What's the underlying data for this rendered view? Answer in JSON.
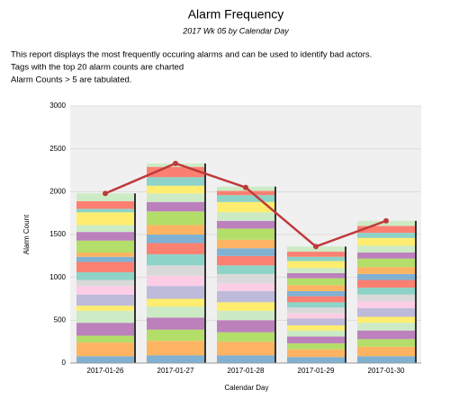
{
  "chart_data": {
    "type": "bar",
    "stacked": true,
    "title": "Alarm Frequency",
    "subtitle": "2017 Wk 05 by Calendar Day",
    "description": [
      "This report displays the most frequently occuring alarms and can be used to identify bad actors.",
      "Tags with the top 20 alarm counts are charted",
      "Alarm Counts > 5 are tabulated."
    ],
    "x_label": "Calendar Day",
    "y_label": "Alarm Count",
    "categories": [
      "2017-01-26",
      "2017-01-27",
      "2017-01-28",
      "2017-01-29",
      "2017-01-30"
    ],
    "ylim": [
      0,
      3000
    ],
    "yticks": [
      0,
      500,
      1000,
      1500,
      2000,
      2500,
      3000
    ],
    "grid": true,
    "series": [
      {
        "color": "#80b1d3",
        "values": [
          80,
          90,
          90,
          70,
          80
        ]
      },
      {
        "color": "#fdb462",
        "values": [
          160,
          170,
          160,
          90,
          110
        ]
      },
      {
        "color": "#b3de69",
        "values": [
          80,
          130,
          110,
          70,
          90
        ]
      },
      {
        "color": "#bc80bd",
        "values": [
          150,
          140,
          140,
          80,
          100
        ]
      },
      {
        "color": "#ccebc5",
        "values": [
          140,
          130,
          110,
          70,
          90
        ]
      },
      {
        "color": "#ffed6f",
        "values": [
          60,
          90,
          100,
          60,
          70
        ]
      },
      {
        "color": "#bebada",
        "values": [
          130,
          150,
          130,
          80,
          100
        ]
      },
      {
        "color": "#fccde5",
        "values": [
          100,
          120,
          90,
          60,
          80
        ]
      },
      {
        "color": "#d9d9d9",
        "values": [
          70,
          120,
          110,
          70,
          80
        ]
      },
      {
        "color": "#8dd3c7",
        "values": [
          90,
          130,
          100,
          60,
          80
        ]
      },
      {
        "color": "#fb8072",
        "values": [
          120,
          130,
          110,
          70,
          90
        ]
      },
      {
        "color": "#80b1d3",
        "values": [
          60,
          100,
          90,
          60,
          70
        ]
      },
      {
        "color": "#fdb462",
        "values": [
          50,
          110,
          100,
          70,
          80
        ]
      },
      {
        "color": "#b3de69",
        "values": [
          140,
          160,
          130,
          80,
          100
        ]
      },
      {
        "color": "#bc80bd",
        "values": [
          100,
          110,
          90,
          60,
          70
        ]
      },
      {
        "color": "#ccebc5",
        "values": [
          80,
          100,
          100,
          60,
          80
        ]
      },
      {
        "color": "#ffed6f",
        "values": [
          150,
          90,
          120,
          80,
          90
        ]
      },
      {
        "color": "#8dd3c7",
        "values": [
          40,
          100,
          80,
          50,
          60
        ]
      },
      {
        "color": "#fb8072",
        "values": [
          90,
          120,
          50,
          60,
          80
        ]
      },
      {
        "color": "#ccebc5",
        "values": [
          90,
          40,
          50,
          60,
          60
        ]
      }
    ],
    "line": {
      "color": "#c0393b",
      "values": [
        1980,
        2330,
        2050,
        1360,
        1660
      ]
    }
  }
}
